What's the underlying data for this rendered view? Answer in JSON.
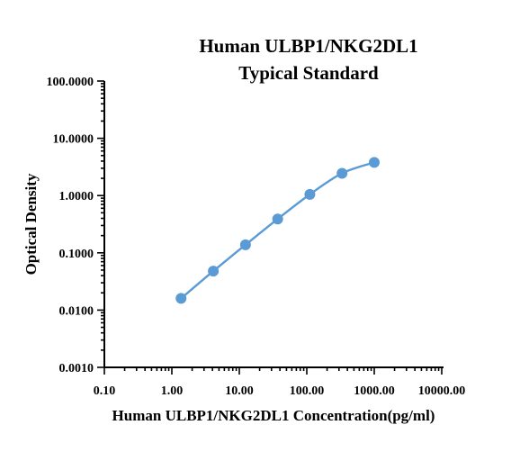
{
  "chart_data": {
    "type": "scatter",
    "title": [
      "Human ULBP1/NKG2DL1",
      "Typical Standard"
    ],
    "xlabel": "Human ULBP1/NKG2DL1 Concentration(pg/ml)",
    "ylabel": "Optical Density",
    "xscale": "log",
    "yscale": "log",
    "xlim": [
      0.1,
      10000
    ],
    "ylim": [
      0.001,
      100
    ],
    "x_ticks": [
      "0.10",
      "1.00",
      "10.00",
      "100.00",
      "1000.00",
      "10000.00"
    ],
    "y_ticks": [
      "0.0010",
      "0.0100",
      "0.1000",
      "1.0000",
      "10.0000",
      "100.0000"
    ],
    "grid": false,
    "series": [
      {
        "color": "#5b9bd5",
        "x": [
          1.37,
          4.12,
          12.35,
          37.04,
          111.11,
          333.33,
          1000
        ],
        "y": [
          0.016,
          0.048,
          0.138,
          0.39,
          1.05,
          2.45,
          3.8
        ]
      }
    ]
  }
}
